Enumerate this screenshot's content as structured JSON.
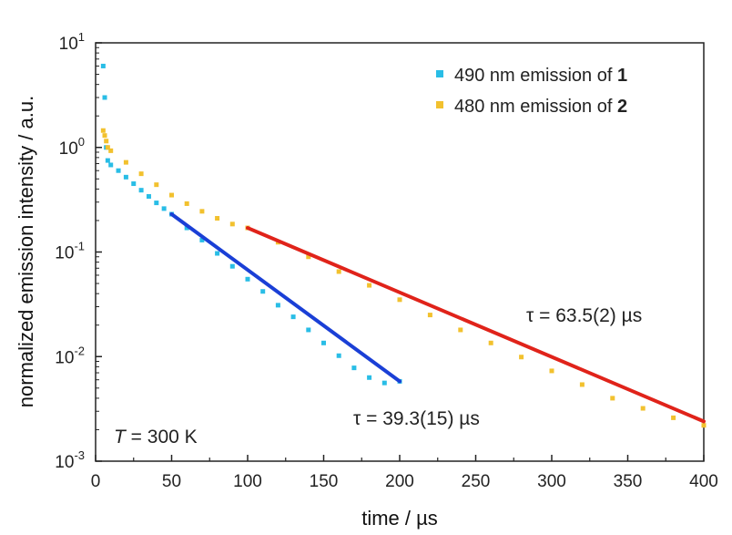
{
  "chart_data": {
    "type": "scatter",
    "xlabel": "time / µs",
    "ylabel": "normalized emission intensity / a.u.",
    "xlim": [
      0,
      400
    ],
    "ylim": [
      0.001,
      10
    ],
    "yscale": "log",
    "xticks": [
      0,
      50,
      100,
      150,
      200,
      250,
      300,
      350,
      400
    ],
    "yticks": [
      {
        "value": 0.001,
        "base": "10",
        "exp": "-3"
      },
      {
        "value": 0.01,
        "base": "10",
        "exp": "-2"
      },
      {
        "value": 0.1,
        "base": "10",
        "exp": "-1"
      },
      {
        "value": 1,
        "base": "10",
        "exp": "0"
      },
      {
        "value": 10,
        "base": "10",
        "exp": "1"
      }
    ],
    "grid": false,
    "legend_position": "top-right",
    "series": [
      {
        "name": "490 nm emission of 1",
        "name_plain": "490 nm emission of ",
        "name_bold": "1",
        "color": "#29bde6",
        "x": [
          5,
          6,
          7,
          8,
          10,
          15,
          20,
          25,
          30,
          35,
          40,
          45,
          50,
          60,
          70,
          80,
          90,
          100,
          110,
          120,
          130,
          140,
          150,
          160,
          170,
          180,
          190,
          200
        ],
        "y": [
          6.0,
          3.0,
          1.0,
          0.75,
          0.68,
          0.6,
          0.52,
          0.45,
          0.39,
          0.34,
          0.295,
          0.26,
          0.23,
          0.17,
          0.13,
          0.097,
          0.073,
          0.055,
          0.042,
          0.031,
          0.024,
          0.018,
          0.0135,
          0.0102,
          0.0078,
          0.0063,
          0.0056,
          0.0058
        ]
      },
      {
        "name": "480 nm emission of 2",
        "name_plain": "480 nm emission of ",
        "name_bold": "2",
        "color": "#f2c12e",
        "x": [
          5,
          6,
          7,
          8,
          10,
          20,
          30,
          40,
          50,
          60,
          70,
          80,
          90,
          100,
          120,
          140,
          160,
          180,
          200,
          220,
          240,
          260,
          280,
          300,
          320,
          340,
          360,
          380,
          400
        ],
        "y": [
          1.45,
          1.3,
          1.15,
          1.0,
          0.93,
          0.72,
          0.56,
          0.44,
          0.35,
          0.29,
          0.245,
          0.21,
          0.185,
          0.17,
          0.124,
          0.09,
          0.065,
          0.048,
          0.035,
          0.025,
          0.018,
          0.0135,
          0.0099,
          0.0073,
          0.0054,
          0.004,
          0.0032,
          0.0026,
          0.0022
        ]
      }
    ],
    "fits": [
      {
        "series": "490 nm emission of 1",
        "color": "#1a3fd6",
        "x_start": 50,
        "x_end": 200,
        "y_start": 0.23,
        "y_end": 0.0058,
        "label": "τ = 39.3(15) µs"
      },
      {
        "series": "480 nm emission of 2",
        "color": "#e0231a",
        "x_start": 100,
        "x_end": 400,
        "y_start": 0.17,
        "y_end": 0.0024,
        "label": "τ = 63.5(2) µs"
      }
    ],
    "annotations": [
      {
        "text": "T = 300 K",
        "italic_part": "T",
        "rest": " = 300 K"
      }
    ]
  }
}
